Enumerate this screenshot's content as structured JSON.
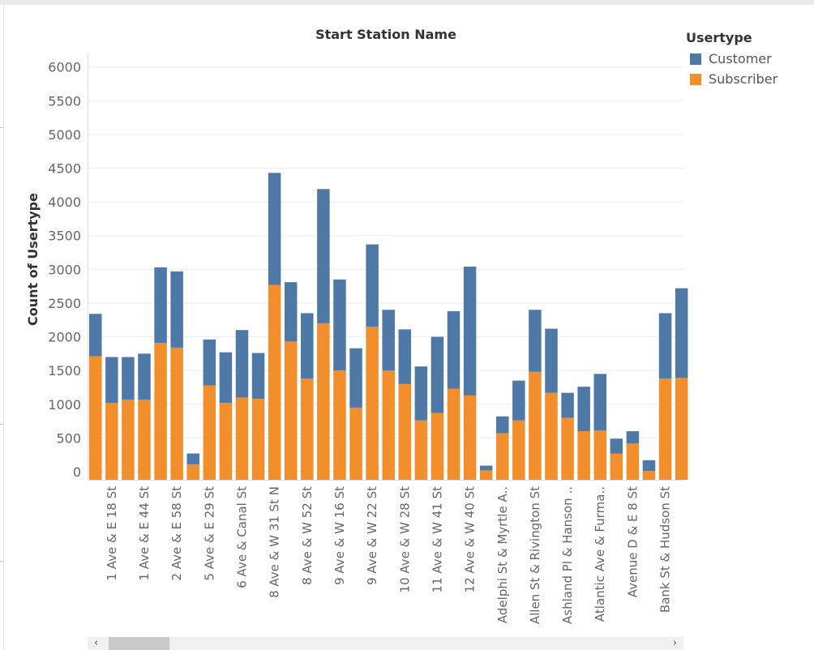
{
  "chart_data": {
    "type": "bar",
    "stacked": true,
    "title": "Start Station Name",
    "ylabel": "Count of Usertype",
    "ylim": [
      -120,
      6200
    ],
    "yticks": [
      0,
      500,
      1000,
      1500,
      2000,
      2500,
      3000,
      3500,
      4000,
      4500,
      5000,
      5500,
      6000
    ],
    "x_tick_labels": [
      "1 Ave & E 18 St",
      "1 Ave & E 44 St",
      "2 Ave & E 58 St",
      "5 Ave & E 29 St",
      "6 Ave & Canal St",
      "8 Ave & W 31 St N",
      "8 Ave & W 52 St",
      "9 Ave & W 16 St",
      "9 Ave & W 22 St",
      "10 Ave & W 28 St",
      "11 Ave & W 41 St",
      "12 Ave & W 40 St",
      "Adelphi St & Myrtle A..",
      "Allen St & Rivington St",
      "Ashland Pl & Hanson ..",
      "Atlantic Ave & Furma..",
      "Avenue D & E 8 St",
      "Bank St & Hudson St"
    ],
    "label_every": 2,
    "label_offset": 1,
    "series": [
      {
        "name": "Subscriber",
        "color": "#f28e2b",
        "values": [
          1710,
          1020,
          1070,
          1070,
          1910,
          1840,
          110,
          1280,
          1020,
          1100,
          1080,
          2770,
          1930,
          1380,
          2200,
          1500,
          950,
          2150,
          1500,
          1300,
          760,
          870,
          1230,
          1130,
          20,
          570,
          760,
          1480,
          1170,
          800,
          600,
          610,
          270,
          420,
          10,
          1380,
          1390
        ]
      },
      {
        "name": "Customer",
        "color": "#4e79a7",
        "values": [
          630,
          680,
          630,
          680,
          1120,
          1130,
          160,
          680,
          750,
          1000,
          680,
          1660,
          880,
          970,
          1990,
          1350,
          880,
          1220,
          900,
          810,
          800,
          1130,
          1150,
          1910,
          70,
          250,
          590,
          920,
          950,
          370,
          660,
          840,
          220,
          180,
          160,
          970,
          1330
        ]
      }
    ]
  },
  "legend": {
    "title": "Usertype",
    "items": [
      {
        "label": "Customer",
        "color": "#4e79a7"
      },
      {
        "label": "Subscriber",
        "color": "#f28e2b"
      }
    ]
  },
  "scrollbar": {
    "left_arrow": "‹",
    "right_arrow": "›"
  }
}
